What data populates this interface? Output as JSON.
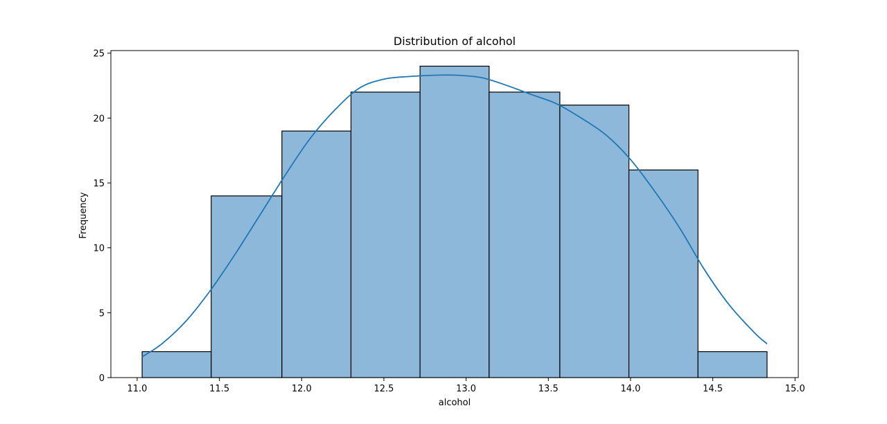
{
  "chart_data": {
    "type": "bar",
    "title": "Distribution of alcohol",
    "xlabel": "alcohol",
    "ylabel": "Frequency",
    "xlim": [
      10.84,
      15.02
    ],
    "ylim": [
      0,
      25.2
    ],
    "grid": false,
    "bins": [
      {
        "x0": 11.03,
        "x1": 11.45,
        "count": 2
      },
      {
        "x0": 11.45,
        "x1": 11.88,
        "count": 14
      },
      {
        "x0": 11.88,
        "x1": 12.3,
        "count": 19
      },
      {
        "x0": 12.3,
        "x1": 12.72,
        "count": 22
      },
      {
        "x0": 12.72,
        "x1": 13.14,
        "count": 24
      },
      {
        "x0": 13.14,
        "x1": 13.57,
        "count": 22
      },
      {
        "x0": 13.57,
        "x1": 13.99,
        "count": 21
      },
      {
        "x0": 13.99,
        "x1": 14.41,
        "count": 16
      },
      {
        "x0": 14.41,
        "x1": 14.83,
        "count": 2
      }
    ],
    "kde": {
      "x": [
        11.03,
        11.15,
        11.3,
        11.45,
        11.6,
        11.75,
        11.9,
        12.05,
        12.2,
        12.35,
        12.5,
        12.65,
        12.8,
        12.95,
        13.1,
        13.25,
        13.4,
        13.55,
        13.7,
        13.85,
        14.0,
        14.15,
        14.3,
        14.45,
        14.6,
        14.75,
        14.83
      ],
      "y": [
        1.6,
        2.6,
        4.4,
        6.8,
        9.6,
        12.6,
        15.6,
        18.4,
        20.6,
        22.3,
        23.0,
        23.2,
        23.3,
        23.3,
        23.1,
        22.5,
        21.8,
        21.1,
        20.0,
        18.7,
        16.8,
        14.3,
        11.5,
        8.3,
        5.6,
        3.5,
        2.6
      ]
    },
    "x_ticks": [
      11.0,
      11.5,
      12.0,
      12.5,
      13.0,
      13.5,
      14.0,
      14.5,
      15.0
    ],
    "x_tick_labels": [
      "11.0",
      "11.5",
      "12.0",
      "12.5",
      "13.0",
      "13.5",
      "14.0",
      "14.5",
      "15.0"
    ],
    "y_ticks": [
      0,
      5,
      10,
      15,
      20,
      25
    ],
    "y_tick_labels": [
      "0",
      "5",
      "10",
      "15",
      "20",
      "25"
    ],
    "colors": {
      "bar_fill": "#8eb8da",
      "bar_edge": "#000000",
      "kde_line": "#1f77b4"
    }
  }
}
